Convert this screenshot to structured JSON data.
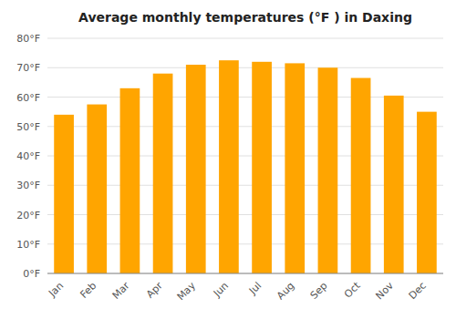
{
  "chart_data": {
    "type": "bar",
    "title": "Average monthly temperatures (°F ) in Daxing",
    "categories": [
      "Jan",
      "Feb",
      "Mar",
      "Apr",
      "May",
      "Jun",
      "Jul",
      "Aug",
      "Sep",
      "Oct",
      "Nov",
      "Dec"
    ],
    "values": [
      54,
      57.5,
      63,
      68,
      71,
      72.5,
      72,
      71.5,
      70,
      66.5,
      60.5,
      55
    ],
    "color": "#FFA500",
    "ylim": [
      0,
      80
    ],
    "yticks": [
      {
        "value": 0,
        "label": "0°F"
      },
      {
        "value": 10,
        "label": "10°F"
      },
      {
        "value": 20,
        "label": "20°F"
      },
      {
        "value": 30,
        "label": "30°F"
      },
      {
        "value": 40,
        "label": "40°F"
      },
      {
        "value": 50,
        "label": "50°F"
      },
      {
        "value": 60,
        "label": "60°F"
      },
      {
        "value": 70,
        "label": "70°F"
      },
      {
        "value": 80,
        "label": "80°F"
      }
    ],
    "grid": true
  }
}
